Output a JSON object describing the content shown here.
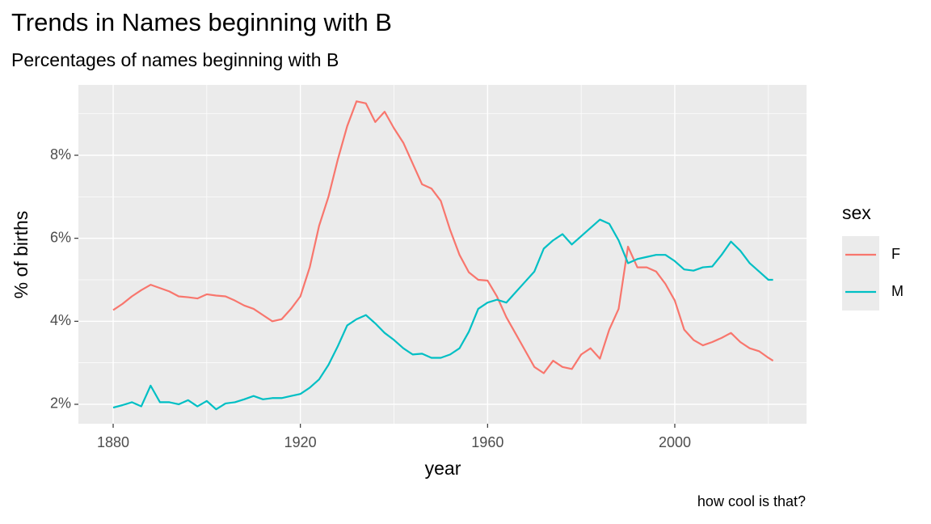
{
  "chart_data": {
    "type": "line",
    "title": "Trends in Names beginning with B",
    "subtitle": "Percentages of names beginning with B",
    "x_label": "year",
    "y_label": "% of births",
    "caption": "how cool is that?",
    "legend_title": "sex",
    "x": [
      1880,
      1882,
      1884,
      1886,
      1888,
      1890,
      1892,
      1894,
      1896,
      1898,
      1900,
      1902,
      1904,
      1906,
      1908,
      1910,
      1912,
      1914,
      1916,
      1918,
      1920,
      1922,
      1924,
      1926,
      1928,
      1930,
      1932,
      1934,
      1936,
      1938,
      1940,
      1942,
      1944,
      1946,
      1948,
      1950,
      1952,
      1954,
      1956,
      1958,
      1960,
      1962,
      1964,
      1966,
      1968,
      1970,
      1972,
      1974,
      1976,
      1978,
      1980,
      1982,
      1984,
      1986,
      1988,
      1990,
      1992,
      1994,
      1996,
      1998,
      2000,
      2002,
      2004,
      2006,
      2008,
      2010,
      2012,
      2014,
      2016,
      2018,
      2020,
      2021
    ],
    "series": [
      {
        "name": "F",
        "color": "#f8766d",
        "values": [
          4.27,
          4.42,
          4.6,
          4.75,
          4.88,
          4.8,
          4.72,
          4.6,
          4.58,
          4.55,
          4.65,
          4.62,
          4.6,
          4.5,
          4.38,
          4.3,
          4.15,
          4.0,
          4.05,
          4.3,
          4.6,
          5.3,
          6.3,
          7.0,
          7.9,
          8.7,
          9.3,
          9.25,
          8.8,
          9.05,
          8.65,
          8.3,
          7.8,
          7.3,
          7.2,
          6.9,
          6.2,
          5.6,
          5.18,
          5.0,
          4.98,
          4.6,
          4.1,
          3.7,
          3.3,
          2.9,
          2.75,
          3.05,
          2.9,
          2.85,
          3.2,
          3.35,
          3.1,
          3.8,
          4.3,
          5.8,
          5.3,
          5.3,
          5.2,
          4.9,
          4.5,
          3.8,
          3.55,
          3.42,
          3.5,
          3.6,
          3.72,
          3.5,
          3.35,
          3.28,
          3.12,
          3.05
        ]
      },
      {
        "name": "M",
        "color": "#00bfc4",
        "values": [
          1.92,
          1.98,
          2.05,
          1.95,
          2.45,
          2.05,
          2.05,
          2.0,
          2.1,
          1.95,
          2.08,
          1.88,
          2.02,
          2.05,
          2.12,
          2.2,
          2.12,
          2.15,
          2.15,
          2.2,
          2.25,
          2.4,
          2.6,
          2.95,
          3.4,
          3.9,
          4.05,
          4.15,
          3.95,
          3.72,
          3.55,
          3.35,
          3.2,
          3.22,
          3.12,
          3.12,
          3.2,
          3.35,
          3.75,
          4.3,
          4.45,
          4.52,
          4.45,
          4.7,
          4.95,
          5.2,
          5.75,
          5.95,
          6.1,
          5.85,
          6.05,
          6.25,
          6.45,
          6.35,
          5.95,
          5.4,
          5.5,
          5.55,
          5.6,
          5.6,
          5.45,
          5.25,
          5.22,
          5.3,
          5.32,
          5.6,
          5.92,
          5.7,
          5.4,
          5.2,
          5.0,
          5.0
        ]
      }
    ],
    "xlim": [
      1872.57,
      2028.15
    ],
    "xticks": [
      1880,
      1920,
      1960,
      2000
    ],
    "ylim": [
      1.532,
      9.695
    ],
    "yticks": [
      {
        "value": 2,
        "label": "2%"
      },
      {
        "value": 4,
        "label": "4%"
      },
      {
        "value": 6,
        "label": "6%"
      },
      {
        "value": 8,
        "label": "8%"
      }
    ],
    "grid": true
  }
}
